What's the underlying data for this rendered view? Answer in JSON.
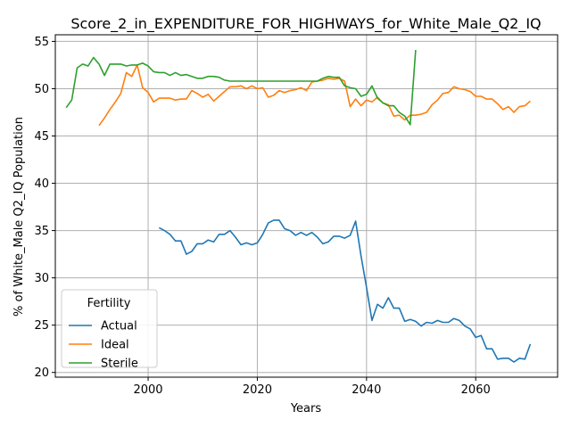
{
  "chart_data": {
    "type": "line",
    "title": "Score_2_in_EXPENDITURE_FOR_HIGHWAYS_for_White_Male_Q2_IQ",
    "xlabel": "Years",
    "ylabel": "% of White_Male Q2_IQ Population",
    "xlim": [
      1983,
      2075
    ],
    "ylim": [
      19.5,
      55.7
    ],
    "xticks": [
      2000,
      2020,
      2040,
      2060
    ],
    "yticks": [
      20,
      25,
      30,
      35,
      40,
      45,
      50,
      55
    ],
    "grid": true,
    "legend": {
      "title": "Fertility",
      "placement": "bottom-left"
    },
    "series": [
      {
        "name": "Actual",
        "color": "#1f77b4",
        "x": [
          2002,
          2003,
          2004,
          2005,
          2006,
          2007,
          2008,
          2009,
          2010,
          2011,
          2012,
          2013,
          2014,
          2015,
          2016,
          2017,
          2018,
          2019,
          2020,
          2021,
          2022,
          2023,
          2024,
          2025,
          2026,
          2027,
          2028,
          2029,
          2030,
          2031,
          2032,
          2033,
          2034,
          2035,
          2036,
          2037,
          2038,
          2039,
          2040,
          2041,
          2042,
          2043,
          2044,
          2045,
          2046,
          2047,
          2048,
          2049,
          2050,
          2051,
          2052,
          2053,
          2054,
          2055,
          2056,
          2057,
          2058,
          2059,
          2060,
          2061,
          2062,
          2063,
          2064,
          2065,
          2066,
          2067,
          2068,
          2069,
          2070
        ],
        "values": [
          35.3,
          35.0,
          34.6,
          33.9,
          33.9,
          32.5,
          32.8,
          33.6,
          33.6,
          34.0,
          33.8,
          34.6,
          34.6,
          35.0,
          34.3,
          33.5,
          33.7,
          33.5,
          33.7,
          34.6,
          35.8,
          36.1,
          36.1,
          35.2,
          35.0,
          34.5,
          34.8,
          34.5,
          34.8,
          34.3,
          33.6,
          33.8,
          34.4,
          34.4,
          34.2,
          34.5,
          36.0,
          32.3,
          29.0,
          25.5,
          27.2,
          26.8,
          27.9,
          26.8,
          26.8,
          25.4,
          25.6,
          25.4,
          24.9,
          25.3,
          25.2,
          25.5,
          25.3,
          25.3,
          25.7,
          25.5,
          24.9,
          24.6,
          23.7,
          23.9,
          22.5,
          22.5,
          21.4,
          21.5,
          21.5,
          21.1,
          21.5,
          21.4,
          23.0
        ]
      },
      {
        "name": "Ideal",
        "color": "#ff7f0e",
        "x": [
          1991,
          1992,
          1993,
          1994,
          1995,
          1996,
          1997,
          1998,
          1999,
          2000,
          2001,
          2002,
          2003,
          2004,
          2005,
          2006,
          2007,
          2008,
          2009,
          2010,
          2011,
          2012,
          2013,
          2014,
          2015,
          2016,
          2017,
          2018,
          2019,
          2020,
          2021,
          2022,
          2023,
          2024,
          2025,
          2026,
          2027,
          2028,
          2029,
          2030,
          2031,
          2032,
          2033,
          2034,
          2035,
          2036,
          2037,
          2038,
          2039,
          2040,
          2041,
          2042,
          2043,
          2044,
          2045,
          2046,
          2047,
          2048,
          2049,
          2050,
          2051,
          2052,
          2053,
          2054,
          2055,
          2056,
          2057,
          2058,
          2059,
          2060,
          2061,
          2062,
          2063,
          2064,
          2065,
          2066,
          2067,
          2068,
          2069,
          2070
        ],
        "values": [
          46.1,
          46.9,
          47.8,
          48.6,
          49.5,
          51.7,
          51.3,
          52.5,
          50.1,
          49.6,
          48.6,
          49.0,
          49.0,
          49.0,
          48.8,
          48.9,
          48.9,
          49.8,
          49.5,
          49.1,
          49.4,
          48.7,
          49.2,
          49.7,
          50.2,
          50.2,
          50.3,
          50.0,
          50.3,
          50.0,
          50.1,
          49.1,
          49.3,
          49.8,
          49.6,
          49.8,
          49.9,
          50.1,
          49.8,
          50.7,
          50.8,
          50.9,
          51.1,
          51.0,
          51.1,
          50.8,
          48.1,
          48.9,
          48.2,
          48.8,
          48.6,
          49.1,
          48.5,
          48.3,
          47.1,
          47.2,
          46.7,
          47.2,
          47.2,
          47.3,
          47.5,
          48.3,
          48.8,
          49.5,
          49.6,
          50.2,
          50.0,
          49.9,
          49.7,
          49.2,
          49.2,
          48.9,
          48.9,
          48.4,
          47.8,
          48.1,
          47.5,
          48.1,
          48.2,
          48.7
        ]
      },
      {
        "name": "Sterile",
        "color": "#2ca02c",
        "x": [
          1985,
          1986,
          1987,
          1988,
          1989,
          1990,
          1991,
          1992,
          1993,
          1994,
          1995,
          1996,
          1997,
          1998,
          1999,
          2000,
          2001,
          2002,
          2003,
          2004,
          2005,
          2006,
          2007,
          2008,
          2009,
          2010,
          2011,
          2012,
          2013,
          2014,
          2015,
          2016,
          2017,
          2018,
          2019,
          2020,
          2021,
          2022,
          2023,
          2024,
          2025,
          2026,
          2027,
          2028,
          2029,
          2030,
          2031,
          2032,
          2033,
          2034,
          2035,
          2036,
          2037,
          2038,
          2039,
          2040,
          2041,
          2042,
          2043,
          2044,
          2045,
          2046,
          2047,
          2048,
          2049
        ],
        "values": [
          48.0,
          48.8,
          52.2,
          52.6,
          52.4,
          53.3,
          52.6,
          51.4,
          52.6,
          52.6,
          52.6,
          52.4,
          52.5,
          52.5,
          52.7,
          52.4,
          51.8,
          51.7,
          51.7,
          51.4,
          51.7,
          51.4,
          51.5,
          51.3,
          51.1,
          51.1,
          51.3,
          51.3,
          51.2,
          50.9,
          50.8,
          50.8,
          50.8,
          50.8,
          50.8,
          50.8,
          50.8,
          50.8,
          50.8,
          50.8,
          50.8,
          50.8,
          50.8,
          50.8,
          50.8,
          50.8,
          50.8,
          51.1,
          51.3,
          51.2,
          51.2,
          50.3,
          50.1,
          50.0,
          49.2,
          49.4,
          50.3,
          49.0,
          48.5,
          48.2,
          48.2,
          47.5,
          47.1,
          46.2,
          54.1
        ]
      }
    ]
  }
}
